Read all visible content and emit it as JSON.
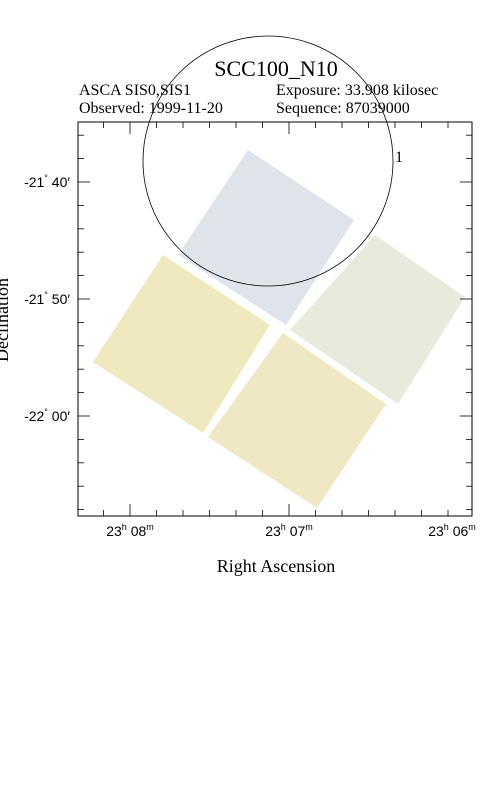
{
  "header": {
    "title": "SCC100_N10",
    "instrument": "ASCA SIS0,SIS1",
    "exposure": "Exposure: 33.908 kilosec",
    "observed": "Observed: 1999-11-20",
    "sequence": "Sequence: 87039000"
  },
  "axes": {
    "x_label": "Right Ascension",
    "y_label": "Declination",
    "x_ticks": [
      [
        "23",
        "h",
        " 08",
        "m"
      ],
      [
        "23",
        "h",
        " 07",
        "m"
      ],
      [
        "23",
        "h",
        " 06",
        "m"
      ]
    ],
    "y_ticks": [
      [
        "-21",
        "°",
        " 40′"
      ],
      [
        "-21",
        "°",
        " 50′"
      ],
      [
        "-22",
        "°",
        " 00′"
      ]
    ]
  },
  "region": {
    "label": "1"
  }
}
